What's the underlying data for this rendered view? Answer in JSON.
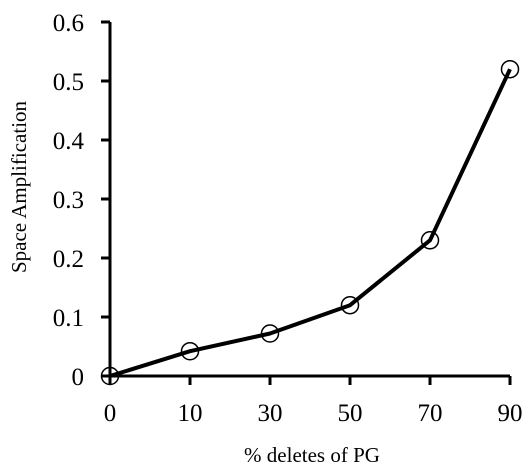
{
  "chart_data": {
    "type": "line",
    "title": "",
    "xlabel": "% deletes of PG",
    "ylabel": "Space Amplification",
    "categories": [
      "0",
      "10",
      "30",
      "50",
      "70",
      "90"
    ],
    "series": [
      {
        "values": [
          0,
          0.042,
          0.072,
          0.12,
          0.23,
          0.52
        ]
      }
    ],
    "ylim": [
      0,
      0.6
    ],
    "yticks": [
      "0",
      "0.1",
      "0.2",
      "0.3",
      "0.4",
      "0.5",
      "0.6"
    ],
    "grid": false,
    "legend": "none",
    "marker": "open-circle",
    "line_color": "#000000"
  }
}
